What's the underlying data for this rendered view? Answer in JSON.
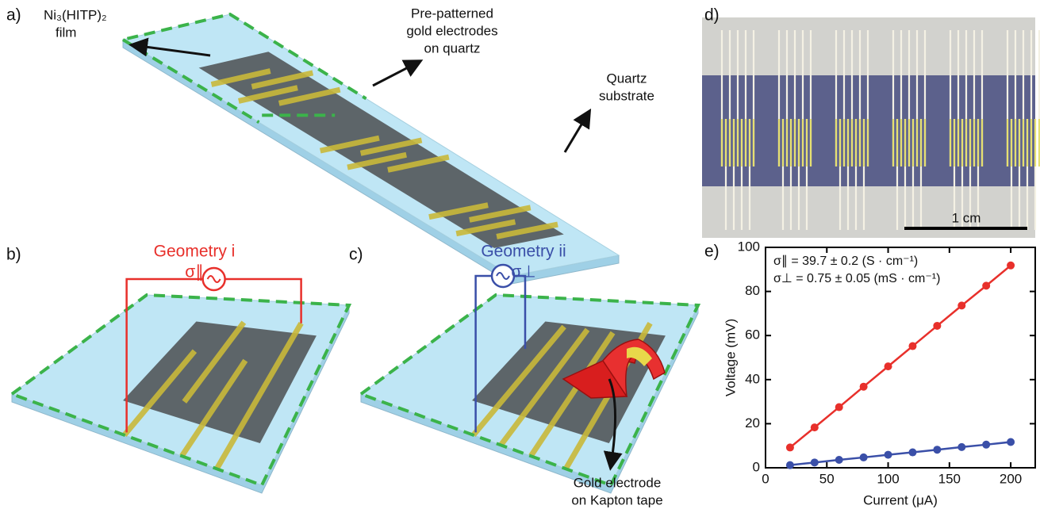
{
  "panels": {
    "a": {
      "label": "a)",
      "film": [
        "Ni₃(HITP)₂",
        "film"
      ],
      "electrodes": [
        "Pre-patterned",
        "gold electrodes",
        "on quartz"
      ],
      "substrate": [
        "Quartz",
        "substrate"
      ]
    },
    "b": {
      "label": "b)",
      "title": "Geometry i",
      "symbol": "σ∥"
    },
    "c": {
      "label": "c)",
      "title": "Geometry ii",
      "symbol": "σ⊥",
      "note": [
        "Gold electrode",
        "on Kapton tape"
      ]
    },
    "d": {
      "label": "d)",
      "scale_bar": "1 cm"
    },
    "e": {
      "label": "e)"
    }
  },
  "chart_data": {
    "type": "line",
    "x_label": "Current (μA)",
    "y_label": "Voltage (mV)",
    "x": [
      20,
      40,
      60,
      80,
      100,
      120,
      140,
      160,
      180,
      200
    ],
    "series": [
      {
        "name": "σ∥ = 39.7 ± 0.2 (S · cm⁻¹)",
        "color": "#e8302b",
        "values": [
          9.2,
          18.3,
          27.5,
          36.8,
          46.0,
          55.2,
          64.4,
          73.6,
          82.6,
          91.8
        ]
      },
      {
        "name": "σ⊥ = 0.75 ± 0.05 (mS · cm⁻¹)",
        "color": "#3a4fa8",
        "values": [
          1.2,
          2.4,
          3.6,
          4.7,
          5.9,
          7.0,
          8.2,
          9.4,
          10.5,
          11.7
        ]
      }
    ],
    "xlim": [
      0,
      220
    ],
    "ylim": [
      0,
      100
    ],
    "xticks": [
      0,
      50,
      100,
      150,
      200
    ],
    "yticks": [
      0,
      20,
      40,
      60,
      80,
      100
    ]
  }
}
